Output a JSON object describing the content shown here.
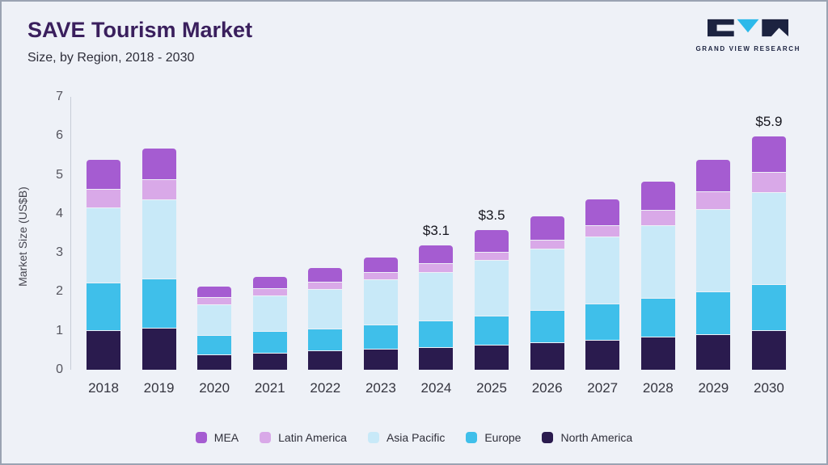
{
  "header": {
    "title": "SAVE Tourism Market",
    "subtitle": "Size, by Region, 2018 - 2030",
    "logo_text": "GRAND VIEW RESEARCH"
  },
  "colors": {
    "background": "#eef1f7",
    "title": "#3a1f5d",
    "logo_dark": "#1c2340",
    "logo_cyan": "#2cb9ea"
  },
  "chart_data": {
    "type": "bar",
    "stacked": true,
    "title": "SAVE Tourism Market Size, by Region, 2018 - 2030",
    "xlabel": "",
    "ylabel": "Market Size (US$B)",
    "ylim": [
      0,
      7
    ],
    "yticks": [
      0,
      1,
      2,
      3,
      4,
      5,
      6,
      7
    ],
    "grid": false,
    "legend_position": "bottom",
    "categories": [
      "2018",
      "2019",
      "2020",
      "2021",
      "2022",
      "2023",
      "2024",
      "2025",
      "2026",
      "2027",
      "2028",
      "2029",
      "2030"
    ],
    "series": [
      {
        "name": "North America",
        "color": "#2a1b4e",
        "values": [
          1.0,
          1.05,
          0.38,
          0.42,
          0.47,
          0.52,
          0.56,
          0.62,
          0.68,
          0.74,
          0.82,
          0.9,
          1.0
        ]
      },
      {
        "name": "Europe",
        "color": "#3fbfea",
        "values": [
          1.2,
          1.25,
          0.47,
          0.53,
          0.55,
          0.6,
          0.66,
          0.73,
          0.82,
          0.91,
          0.98,
          1.07,
          1.15
        ]
      },
      {
        "name": "Asia Pacific",
        "color": "#c8e9f8",
        "values": [
          1.9,
          2.0,
          0.77,
          0.9,
          0.98,
          1.13,
          1.23,
          1.4,
          1.55,
          1.7,
          1.85,
          2.08,
          2.35
        ]
      },
      {
        "name": "Latin America",
        "color": "#d9a9e8",
        "values": [
          0.45,
          0.5,
          0.16,
          0.15,
          0.18,
          0.17,
          0.2,
          0.2,
          0.2,
          0.27,
          0.37,
          0.45,
          0.5
        ]
      },
      {
        "name": "MEA",
        "color": "#a55cd1",
        "values": [
          0.75,
          0.8,
          0.27,
          0.3,
          0.34,
          0.38,
          0.45,
          0.55,
          0.6,
          0.66,
          0.73,
          0.8,
          0.9
        ]
      }
    ],
    "totals": [
      5.3,
      5.6,
      2.05,
      2.3,
      2.52,
      2.8,
      3.1,
      3.5,
      3.85,
      4.28,
      4.75,
      5.3,
      5.9
    ],
    "total_labels": {
      "2024": "$3.1",
      "2025": "$3.5",
      "2030": "$5.9"
    },
    "legend": [
      {
        "label": "MEA",
        "color": "#a55cd1"
      },
      {
        "label": "Latin America",
        "color": "#d9a9e8"
      },
      {
        "label": "Asia Pacific",
        "color": "#c8e9f8"
      },
      {
        "label": "Europe",
        "color": "#3fbfea"
      },
      {
        "label": "North America",
        "color": "#2a1b4e"
      }
    ]
  }
}
